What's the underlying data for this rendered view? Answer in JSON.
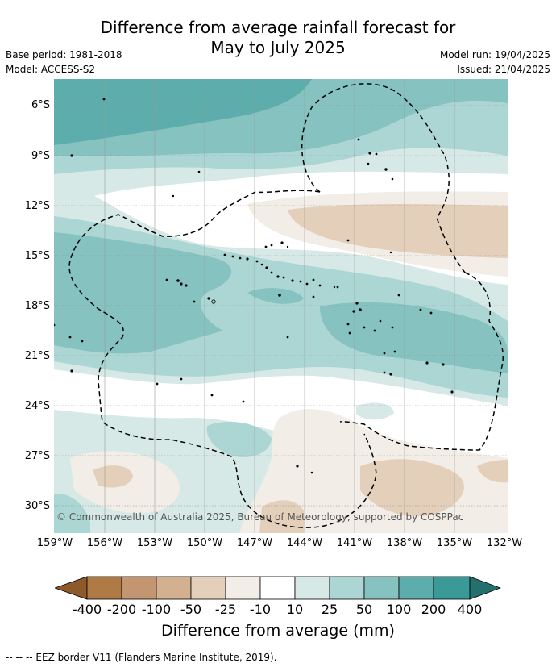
{
  "title_line1": "Difference from average rainfall forecast for",
  "title_line2": "May to July 2025",
  "meta": {
    "base_period": "Base period: 1981-2018",
    "model": "Model: ACCESS-S2",
    "model_run": "Model run: 19/04/2025",
    "issued": "Issued: 21/04/2025"
  },
  "lat_ticks": [
    "6°S",
    "9°S",
    "12°S",
    "15°S",
    "18°S",
    "21°S",
    "24°S",
    "27°S",
    "30°S"
  ],
  "lon_ticks": [
    "159°W",
    "156°W",
    "153°W",
    "150°W",
    "147°W",
    "144°W",
    "141°W",
    "138°W",
    "135°W",
    "132°W"
  ],
  "copyright": "© Commonwealth of Australia 2025, Bureau of Meteorology, supported by COSPPac",
  "colorbar": {
    "labels": [
      "-400",
      "-200",
      "-100",
      "-50",
      "-25",
      "-10",
      "10",
      "25",
      "50",
      "100",
      "200",
      "400"
    ],
    "colors": [
      "#8c5a2b",
      "#b07a45",
      "#c39570",
      "#d3b08f",
      "#e4cfba",
      "#f2ede6",
      "#ffffff",
      "#d6e9e7",
      "#acd6d4",
      "#85c2c0",
      "#5cadab",
      "#3a9a98",
      "#24706e"
    ],
    "title": "Difference from average (mm)"
  },
  "footnote": "--  --  -- EEZ border V11 (Flanders Marine Institute, 2019)."
}
